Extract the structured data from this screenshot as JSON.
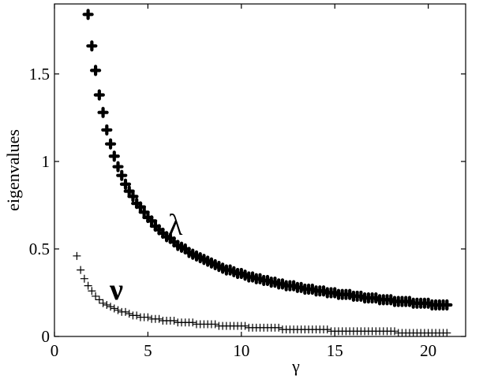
{
  "chart_data": {
    "type": "scatter",
    "title": "",
    "xlabel": "γ",
    "ylabel": "eigenvalues",
    "xlim": [
      0,
      22
    ],
    "ylim": [
      0,
      1.9
    ],
    "xticks": [
      0,
      5,
      10,
      15,
      20
    ],
    "yticks": [
      0,
      0.5,
      1,
      1.5
    ],
    "xtick_labels": [
      "0",
      "5",
      "10",
      "15",
      "20"
    ],
    "ytick_labels": [
      "0",
      "0.5",
      "1",
      "1.5"
    ],
    "grid": false,
    "annotations": [
      {
        "text": "λ",
        "x": 6.5,
        "y": 0.6
      },
      {
        "text": "ν",
        "x": 3.7,
        "y": 0.25
      }
    ],
    "series": [
      {
        "marker": "filled-plus",
        "x_start": 1.8,
        "x_step": 0.2,
        "x_end": 21.0,
        "y": [
          1.84,
          1.66,
          1.52,
          1.38,
          1.28,
          1.18,
          1.1,
          1.03,
          0.97,
          0.92,
          0.87,
          0.83,
          0.8,
          0.76,
          0.74,
          0.71,
          0.68,
          0.66,
          0.63,
          0.61,
          0.59,
          0.57,
          0.56,
          0.54,
          0.52,
          0.51,
          0.5,
          0.48,
          0.47,
          0.46,
          0.45,
          0.44,
          0.43,
          0.42,
          0.41,
          0.4,
          0.39,
          0.38,
          0.38,
          0.37,
          0.36,
          0.36,
          0.35,
          0.34,
          0.34,
          0.33,
          0.33,
          0.32,
          0.32,
          0.31,
          0.31,
          0.3,
          0.3,
          0.29,
          0.29,
          0.29,
          0.28,
          0.28,
          0.27,
          0.27,
          0.27,
          0.26,
          0.26,
          0.26,
          0.25,
          0.25,
          0.25,
          0.24,
          0.24,
          0.24,
          0.24,
          0.23,
          0.23,
          0.23,
          0.22,
          0.22,
          0.22,
          0.22,
          0.21,
          0.21,
          0.21,
          0.21,
          0.2,
          0.2,
          0.2,
          0.2,
          0.2,
          0.19,
          0.19,
          0.19,
          0.19,
          0.19,
          0.18,
          0.18,
          0.18,
          0.18,
          0.18
        ]
      },
      {
        "marker": "plus",
        "x_start": 1.2,
        "x_step": 0.2,
        "x_end": 21.0,
        "y": [
          0.46,
          0.38,
          0.33,
          0.29,
          0.26,
          0.23,
          0.21,
          0.19,
          0.18,
          0.17,
          0.16,
          0.15,
          0.14,
          0.14,
          0.13,
          0.12,
          0.12,
          0.11,
          0.11,
          0.11,
          0.1,
          0.1,
          0.1,
          0.09,
          0.09,
          0.09,
          0.09,
          0.08,
          0.08,
          0.08,
          0.08,
          0.08,
          0.07,
          0.07,
          0.07,
          0.07,
          0.07,
          0.07,
          0.06,
          0.06,
          0.06,
          0.06,
          0.06,
          0.06,
          0.06,
          0.06,
          0.05,
          0.05,
          0.05,
          0.05,
          0.05,
          0.05,
          0.05,
          0.05,
          0.05,
          0.04,
          0.04,
          0.04,
          0.04,
          0.04,
          0.04,
          0.04,
          0.04,
          0.04,
          0.04,
          0.04,
          0.04,
          0.04,
          0.03,
          0.03,
          0.03,
          0.03,
          0.03,
          0.03,
          0.03,
          0.03,
          0.03,
          0.03,
          0.03,
          0.03,
          0.03,
          0.03,
          0.03,
          0.03,
          0.03,
          0.03,
          0.02,
          0.02,
          0.02,
          0.02,
          0.02,
          0.02,
          0.02,
          0.02,
          0.02,
          0.02,
          0.02,
          0.02,
          0.02,
          0.02
        ]
      }
    ]
  }
}
